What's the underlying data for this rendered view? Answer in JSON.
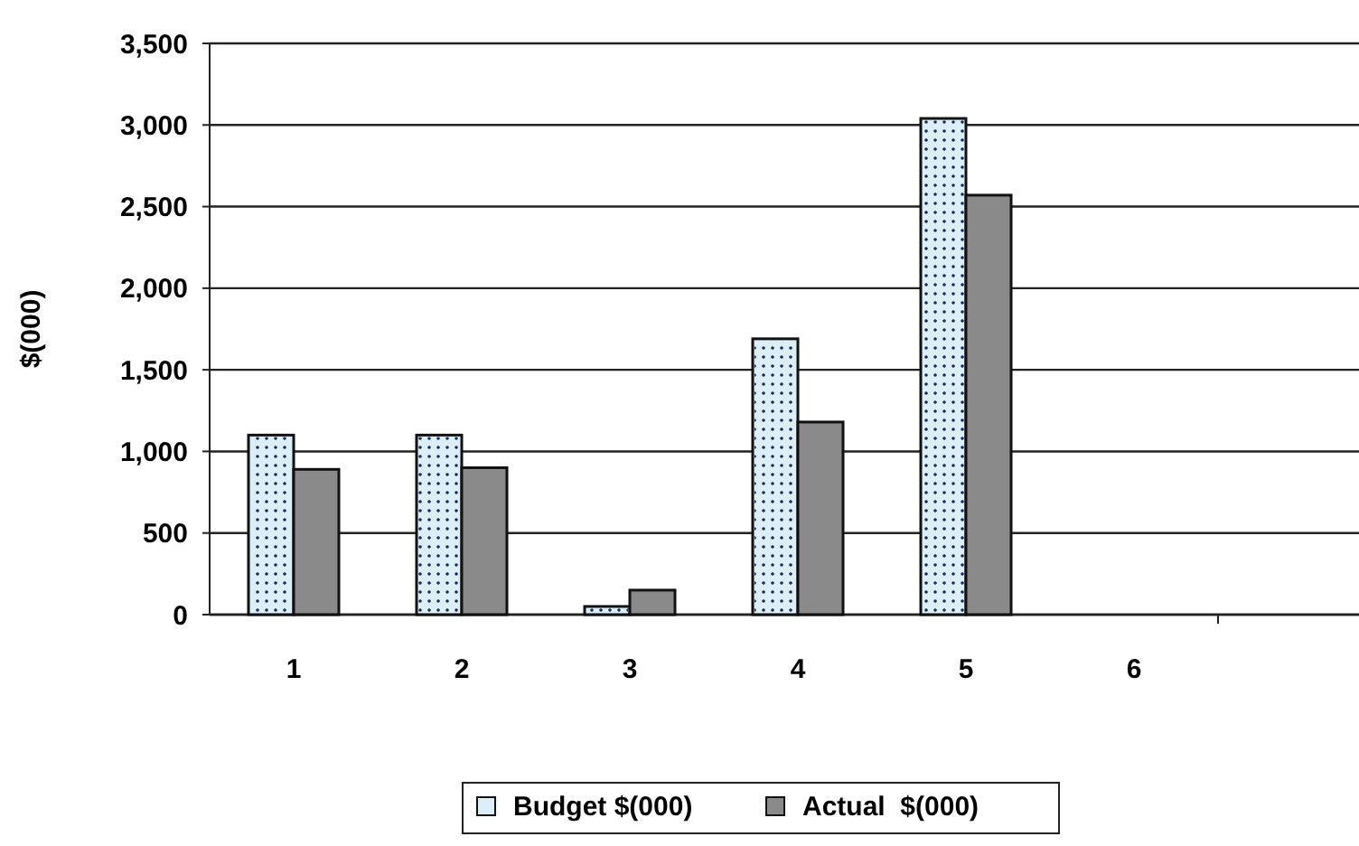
{
  "chart_data": {
    "type": "bar",
    "ylabel": "$(000)",
    "categories": [
      "1",
      "2",
      "3",
      "4",
      "5",
      "6",
      null
    ],
    "series": [
      {
        "name": "Budget $(000)",
        "color": "#dceef8",
        "values": [
          1100,
          1100,
          50,
          1690,
          3040,
          null,
          null
        ]
      },
      {
        "name": "Actual  $(000)",
        "color": "#8a8a8a",
        "values": [
          890,
          900,
          150,
          1180,
          2570,
          null,
          null
        ]
      }
    ],
    "ylim": [
      0,
      3500
    ],
    "yticks": [
      {
        "value": 0,
        "label": "0"
      },
      {
        "value": 500,
        "label": "500"
      },
      {
        "value": 1000,
        "label": "1,000"
      },
      {
        "value": 1500,
        "label": "1,500"
      },
      {
        "value": 2000,
        "label": "2,000"
      },
      {
        "value": 2500,
        "label": "2,500"
      },
      {
        "value": 3000,
        "label": "3,000"
      },
      {
        "value": 3500,
        "label": "3,500"
      }
    ],
    "grid": "y",
    "legend": "bottom"
  }
}
